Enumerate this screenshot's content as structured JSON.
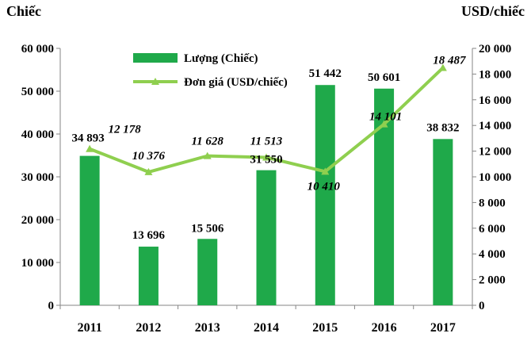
{
  "chart_data": {
    "type": "bar",
    "categories": [
      "2011",
      "2012",
      "2013",
      "2014",
      "2015",
      "2016",
      "2017"
    ],
    "series": [
      {
        "name": "Lượng (Chiếc)",
        "kind": "bar",
        "axis": "left",
        "values": [
          34893,
          13696,
          15506,
          31550,
          51442,
          50601,
          38832
        ],
        "labels": [
          "34 893",
          "13 696",
          "15 506",
          "31 550",
          "51 442",
          "50 601",
          "38 832"
        ]
      },
      {
        "name": "Đơn giá (USD/chiếc)",
        "kind": "line",
        "axis": "right",
        "values": [
          12178,
          10376,
          11628,
          11513,
          10410,
          14101,
          18487
        ],
        "labels": [
          "12 178",
          "10 376",
          "11 628",
          "11 513",
          "10 410",
          "14 101",
          "18 487"
        ]
      }
    ],
    "left_axis": {
      "unit": "Chiếc",
      "ylim": [
        0,
        60000
      ],
      "ticks": [
        "0",
        "10 000",
        "20 000",
        "30 000",
        "40 000",
        "50 000",
        "60 000"
      ]
    },
    "right_axis": {
      "unit": "USD/chiếc",
      "ylim": [
        0,
        20000
      ],
      "ticks": [
        "0",
        "2 000",
        "4 000",
        "6 000",
        "8 000",
        "10 000",
        "12 000",
        "14 000",
        "16 000",
        "18 000",
        "20 000"
      ]
    },
    "grid": false,
    "legend": "top-left",
    "colors": {
      "bar": "#1fa94a",
      "line": "#8fcf4f"
    }
  }
}
